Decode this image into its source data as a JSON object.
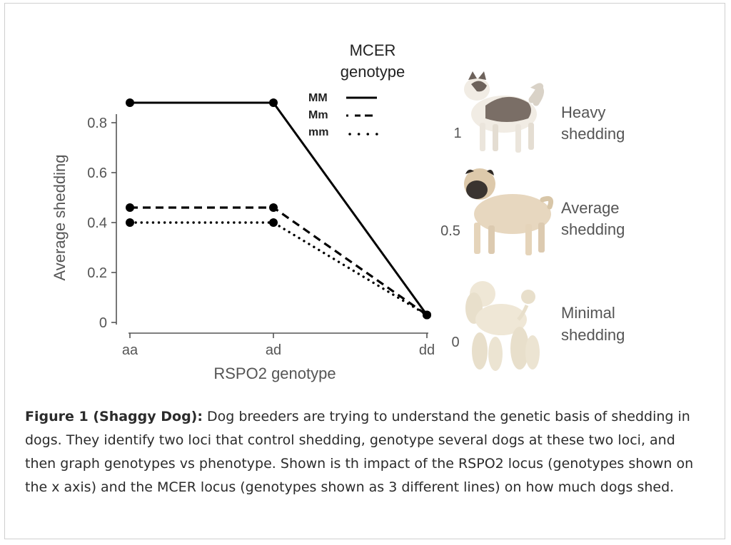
{
  "chart_data": {
    "type": "line",
    "title": "",
    "xlabel": "RSPO2 genotype",
    "ylabel": "Average shedding",
    "categories": [
      "aa",
      "ad",
      "dd"
    ],
    "ylim": [
      0,
      0.9
    ],
    "yticks": [
      0,
      0.2,
      0.4,
      0.6,
      0.8
    ],
    "ytick_labels": [
      "0",
      "0.2",
      "0.4",
      "0.6",
      "0.8"
    ],
    "legend_title_line1": "MCER",
    "legend_title_line2": "genotype",
    "legend_placement": "top-right",
    "series": [
      {
        "name": "MM",
        "style": "solid",
        "values": [
          0.88,
          0.88,
          0.03
        ]
      },
      {
        "name": "Mm",
        "style": "dashed",
        "values": [
          0.46,
          0.46,
          0.03
        ]
      },
      {
        "name": "mm",
        "style": "dotted",
        "values": [
          0.4,
          0.4,
          0.03
        ]
      }
    ],
    "scale_labels": [
      "1",
      "0.5",
      "0"
    ],
    "phenotype_labels": [
      {
        "line1": "Heavy",
        "line2": "shedding"
      },
      {
        "line1": "Average",
        "line2": "shedding"
      },
      {
        "line1": "Minimal",
        "line2": "shedding"
      }
    ]
  },
  "caption": {
    "label": "Figure 1 (Shaggy Dog):",
    "text": " Dog breeders are trying to understand the genetic basis of shedding in dogs. They identify two loci that control shedding, genotype several dogs at these two loci, and then graph genotypes vs phenotype. Shown is th impact of the RSPO2 locus (genotypes shown on the x axis) and the MCER locus (genotypes shown as 3 different lines) on how much dogs shed."
  },
  "colors": {
    "line": "#000000",
    "axis": "#555555",
    "dog_akita_white": "#f1ece4",
    "dog_akita_patch": "#7a6e66",
    "dog_pug_body": "#e7d7bf",
    "dog_pug_mask": "#3a3430",
    "dog_poodle": "#efe7d6"
  }
}
